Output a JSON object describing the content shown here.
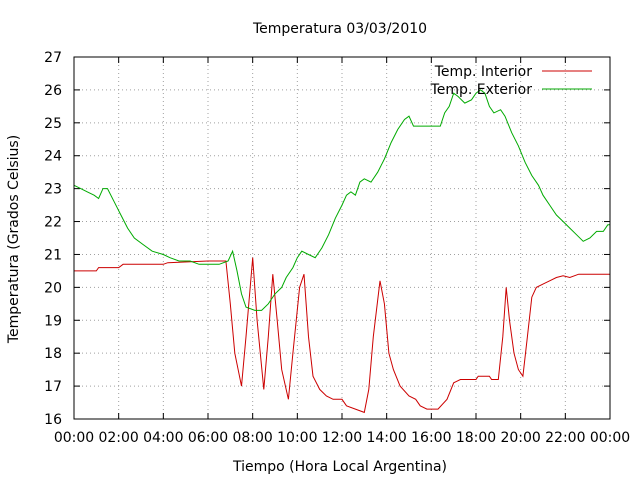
{
  "chart_data": {
    "type": "line",
    "title": "Temperatura 03/03/2010",
    "xlabel": "Tiempo (Hora Local Argentina)",
    "ylabel": "Temperatura (Grados Celsius)",
    "x_unit": "hours",
    "xlim": [
      0,
      24
    ],
    "ylim": [
      16,
      27
    ],
    "x_ticks": [
      0,
      2,
      4,
      6,
      8,
      10,
      12,
      14,
      16,
      18,
      20,
      22,
      24
    ],
    "x_tick_labels": [
      "00:00",
      "02:00",
      "04:00",
      "06:00",
      "08:00",
      "10:00",
      "12:00",
      "14:00",
      "16:00",
      "18:00",
      "20:00",
      "22:00",
      "00:00"
    ],
    "y_ticks": [
      16,
      17,
      18,
      19,
      20,
      21,
      22,
      23,
      24,
      25,
      26,
      27
    ],
    "y_tick_labels": [
      "16",
      "17",
      "18",
      "19",
      "20",
      "21",
      "22",
      "23",
      "24",
      "25",
      "26",
      "27"
    ],
    "grid": true,
    "legend_position": "top-right",
    "series": [
      {
        "name": "Temp. Interior",
        "color": "#cc0000",
        "points": [
          [
            0,
            20.5
          ],
          [
            1,
            20.5
          ],
          [
            1.1,
            20.6
          ],
          [
            2,
            20.6
          ],
          [
            2.2,
            20.7
          ],
          [
            4,
            20.7
          ],
          [
            4.2,
            20.75
          ],
          [
            6,
            20.8
          ],
          [
            6.8,
            20.8
          ],
          [
            7.0,
            19.5
          ],
          [
            7.2,
            18.0
          ],
          [
            7.5,
            17.0
          ],
          [
            7.7,
            18.5
          ],
          [
            8.0,
            20.9
          ],
          [
            8.2,
            19.0
          ],
          [
            8.5,
            16.9
          ],
          [
            8.7,
            18.5
          ],
          [
            8.9,
            20.4
          ],
          [
            9.1,
            19.0
          ],
          [
            9.3,
            17.5
          ],
          [
            9.6,
            16.6
          ],
          [
            9.8,
            18.0
          ],
          [
            10.1,
            20.0
          ],
          [
            10.3,
            20.4
          ],
          [
            10.5,
            18.5
          ],
          [
            10.7,
            17.3
          ],
          [
            11.0,
            16.9
          ],
          [
            11.3,
            16.7
          ],
          [
            11.6,
            16.6
          ],
          [
            12.0,
            16.6
          ],
          [
            12.2,
            16.4
          ],
          [
            12.6,
            16.3
          ],
          [
            13.0,
            16.2
          ],
          [
            13.2,
            16.9
          ],
          [
            13.4,
            18.5
          ],
          [
            13.7,
            20.2
          ],
          [
            13.9,
            19.5
          ],
          [
            14.1,
            18.0
          ],
          [
            14.3,
            17.5
          ],
          [
            14.6,
            17.0
          ],
          [
            15.0,
            16.7
          ],
          [
            15.3,
            16.6
          ],
          [
            15.5,
            16.4
          ],
          [
            15.8,
            16.3
          ],
          [
            16.3,
            16.3
          ],
          [
            16.7,
            16.6
          ],
          [
            17.0,
            17.1
          ],
          [
            17.3,
            17.2
          ],
          [
            18.0,
            17.2
          ],
          [
            18.1,
            17.3
          ],
          [
            18.6,
            17.3
          ],
          [
            18.7,
            17.2
          ],
          [
            19.0,
            17.2
          ],
          [
            19.2,
            18.5
          ],
          [
            19.35,
            20.0
          ],
          [
            19.5,
            19.0
          ],
          [
            19.7,
            18.0
          ],
          [
            19.9,
            17.5
          ],
          [
            20.1,
            17.3
          ],
          [
            20.3,
            18.5
          ],
          [
            20.5,
            19.7
          ],
          [
            20.7,
            20.0
          ],
          [
            21.0,
            20.1
          ],
          [
            21.3,
            20.2
          ],
          [
            21.6,
            20.3
          ],
          [
            21.9,
            20.35
          ],
          [
            22.2,
            20.3
          ],
          [
            22.6,
            20.4
          ],
          [
            24,
            20.4
          ]
        ]
      },
      {
        "name": "Temp. Exterior",
        "color": "#00aa00",
        "points": [
          [
            0,
            23.1
          ],
          [
            0.3,
            23.0
          ],
          [
            0.6,
            22.9
          ],
          [
            0.9,
            22.8
          ],
          [
            1.1,
            22.7
          ],
          [
            1.3,
            23.0
          ],
          [
            1.5,
            23.0
          ],
          [
            1.8,
            22.6
          ],
          [
            2.1,
            22.2
          ],
          [
            2.4,
            21.8
          ],
          [
            2.7,
            21.5
          ],
          [
            3.1,
            21.3
          ],
          [
            3.5,
            21.1
          ],
          [
            4.0,
            21.0
          ],
          [
            4.3,
            20.9
          ],
          [
            4.7,
            20.8
          ],
          [
            5.2,
            20.8
          ],
          [
            5.6,
            20.7
          ],
          [
            6.1,
            20.7
          ],
          [
            6.5,
            20.7
          ],
          [
            6.9,
            20.8
          ],
          [
            7.1,
            21.1
          ],
          [
            7.3,
            20.5
          ],
          [
            7.5,
            19.8
          ],
          [
            7.7,
            19.4
          ],
          [
            8.1,
            19.3
          ],
          [
            8.4,
            19.3
          ],
          [
            8.7,
            19.5
          ],
          [
            9.0,
            19.8
          ],
          [
            9.3,
            20.0
          ],
          [
            9.5,
            20.3
          ],
          [
            9.8,
            20.6
          ],
          [
            10.0,
            20.9
          ],
          [
            10.2,
            21.1
          ],
          [
            10.5,
            21.0
          ],
          [
            10.8,
            20.9
          ],
          [
            11.1,
            21.2
          ],
          [
            11.4,
            21.6
          ],
          [
            11.7,
            22.1
          ],
          [
            12.0,
            22.5
          ],
          [
            12.2,
            22.8
          ],
          [
            12.4,
            22.9
          ],
          [
            12.6,
            22.8
          ],
          [
            12.8,
            23.2
          ],
          [
            13.0,
            23.3
          ],
          [
            13.3,
            23.2
          ],
          [
            13.6,
            23.5
          ],
          [
            13.9,
            23.9
          ],
          [
            14.2,
            24.4
          ],
          [
            14.5,
            24.8
          ],
          [
            14.8,
            25.1
          ],
          [
            15.0,
            25.2
          ],
          [
            15.2,
            24.9
          ],
          [
            15.6,
            24.9
          ],
          [
            16.0,
            24.9
          ],
          [
            16.4,
            24.9
          ],
          [
            16.6,
            25.3
          ],
          [
            16.8,
            25.5
          ],
          [
            17.0,
            25.9
          ],
          [
            17.2,
            25.8
          ],
          [
            17.5,
            25.6
          ],
          [
            17.8,
            25.7
          ],
          [
            18.0,
            25.9
          ],
          [
            18.2,
            26.0
          ],
          [
            18.4,
            25.9
          ],
          [
            18.6,
            25.5
          ],
          [
            18.8,
            25.3
          ],
          [
            19.1,
            25.4
          ],
          [
            19.3,
            25.2
          ],
          [
            19.6,
            24.7
          ],
          [
            19.9,
            24.3
          ],
          [
            20.2,
            23.8
          ],
          [
            20.5,
            23.4
          ],
          [
            20.8,
            23.1
          ],
          [
            21.0,
            22.8
          ],
          [
            21.3,
            22.5
          ],
          [
            21.6,
            22.2
          ],
          [
            21.9,
            22.0
          ],
          [
            22.2,
            21.8
          ],
          [
            22.5,
            21.6
          ],
          [
            22.8,
            21.4
          ],
          [
            23.1,
            21.5
          ],
          [
            23.4,
            21.7
          ],
          [
            23.7,
            21.7
          ],
          [
            23.9,
            21.9
          ],
          [
            24,
            21.9
          ]
        ]
      }
    ]
  }
}
